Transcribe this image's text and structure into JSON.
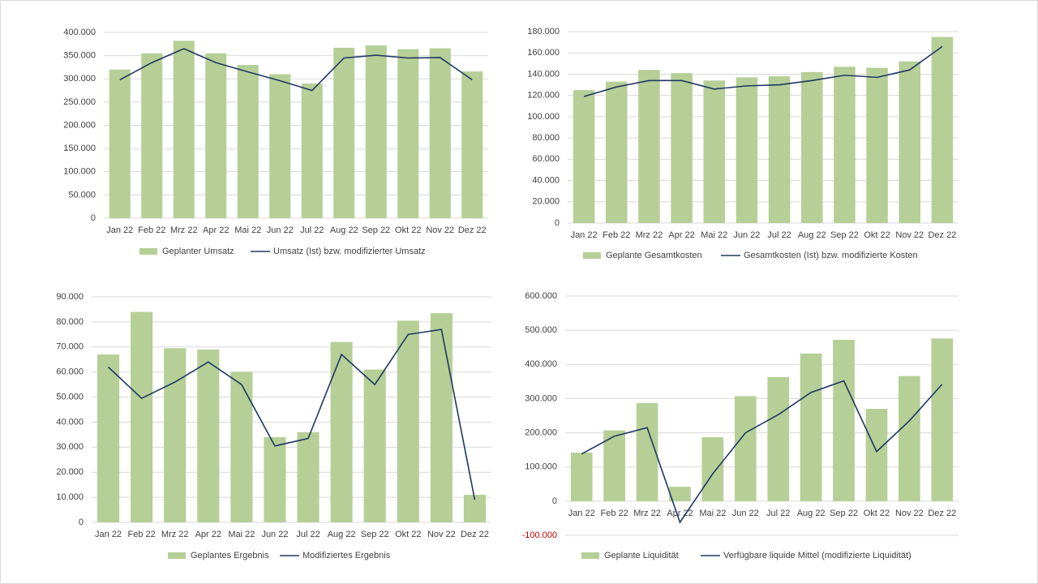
{
  "chart_data": [
    {
      "type": "combo",
      "categories": [
        "Jan 22",
        "Feb 22",
        "Mrz 22",
        "Apr 22",
        "Mai 22",
        "Jun 22",
        "Jul 22",
        "Aug 22",
        "Sep 22",
        "Okt 22",
        "Nov 22",
        "Dez 22"
      ],
      "series": [
        {
          "name": "Geplanter Umsatz",
          "type": "bar",
          "color": "#b5cf96",
          "values": [
            320000,
            355000,
            382000,
            355000,
            330000,
            310000,
            290000,
            367000,
            372000,
            364000,
            366000,
            316000
          ]
        },
        {
          "name": "Umsatz (Ist) bzw. modifizierter Umsatz",
          "type": "line",
          "color": "#1f3864",
          "values": [
            298000,
            335000,
            365000,
            335000,
            315000,
            296000,
            275000,
            345000,
            351000,
            345000,
            346000,
            298000
          ]
        }
      ],
      "ylim": [
        0,
        400000
      ],
      "yticks": [
        0,
        {
          "value": 50000,
          "label": "50.000"
        },
        {
          "value": 100000,
          "label": "100.000"
        },
        {
          "value": 150000,
          "label": "150.000"
        },
        {
          "value": 200000,
          "label": "200.000"
        },
        {
          "value": 250000,
          "label": "250.000"
        },
        {
          "value": 300000,
          "label": "300.000"
        },
        {
          "value": 350000,
          "label": "350.000"
        },
        {
          "value": 400000,
          "label": "400.000"
        }
      ],
      "grid": true
    },
    {
      "type": "combo",
      "categories": [
        "Jan 22",
        "Feb 22",
        "Mrz 22",
        "Apr 22",
        "Mai 22",
        "Jun 22",
        "Jul 22",
        "Aug 22",
        "Sep 22",
        "Okt 22",
        "Nov 22",
        "Dez 22"
      ],
      "series": [
        {
          "name": "Geplante Gesamtkosten",
          "type": "bar",
          "color": "#b5cf96",
          "values": [
            125000,
            133000,
            144000,
            141000,
            134000,
            137000,
            138000,
            142000,
            147000,
            146000,
            152000,
            175000
          ]
        },
        {
          "name": "Gesamtkosten (Ist) bzw. modifizierte Kosten",
          "type": "line",
          "color": "#1f3864",
          "values": [
            119000,
            128000,
            134000,
            134000,
            126000,
            129000,
            130000,
            134000,
            139000,
            137000,
            144000,
            166000
          ]
        }
      ],
      "ylim": [
        0,
        180000
      ],
      "yticks": [
        0,
        {
          "value": 20000,
          "label": "20.000"
        },
        {
          "value": 40000,
          "label": "40.000"
        },
        {
          "value": 60000,
          "label": "60.000"
        },
        {
          "value": 80000,
          "label": "80.000"
        },
        {
          "value": 100000,
          "label": "100.000"
        },
        {
          "value": 120000,
          "label": "120.000"
        },
        {
          "value": 140000,
          "label": "140.000"
        },
        {
          "value": 160000,
          "label": "160.000"
        },
        {
          "value": 180000,
          "label": "180.000"
        }
      ],
      "grid": true
    },
    {
      "type": "combo",
      "categories": [
        "Jan 22",
        "Feb 22",
        "Mrz 22",
        "Apr 22",
        "Mai 22",
        "Jun 22",
        "Jul 22",
        "Aug 22",
        "Sep 22",
        "Okt 22",
        "Nov 22",
        "Dez 22"
      ],
      "series": [
        {
          "name": "Geplantes Ergebnis",
          "type": "bar",
          "color": "#b5cf96",
          "values": [
            67000,
            84000,
            69500,
            69000,
            60000,
            34000,
            36000,
            72000,
            61000,
            80500,
            83500,
            11000
          ]
        },
        {
          "name": "Modifiziertes Ergebnis",
          "type": "line",
          "color": "#1f3864",
          "values": [
            62000,
            49500,
            56000,
            64000,
            55000,
            30500,
            33500,
            67000,
            55000,
            75000,
            77000,
            9000
          ]
        }
      ],
      "ylim": [
        0,
        90000
      ],
      "yticks": [
        0,
        {
          "value": 10000,
          "label": "10.000"
        },
        {
          "value": 20000,
          "label": "20.000"
        },
        {
          "value": 30000,
          "label": "30.000"
        },
        {
          "value": 40000,
          "label": "40.000"
        },
        {
          "value": 50000,
          "label": "50.000"
        },
        {
          "value": 60000,
          "label": "60.000"
        },
        {
          "value": 70000,
          "label": "70.000"
        },
        {
          "value": 80000,
          "label": "80.000"
        },
        {
          "value": 90000,
          "label": "90.000"
        }
      ],
      "grid": true
    },
    {
      "type": "combo",
      "categories": [
        "Jan 22",
        "Feb 22",
        "Mrz 22",
        "Apr 22",
        "Mai 22",
        "Jun 22",
        "Jul 22",
        "Aug 22",
        "Sep 22",
        "Okt 22",
        "Nov 22",
        "Dez 22"
      ],
      "series": [
        {
          "name": "Geplante Liquidität",
          "type": "bar",
          "color": "#b5cf96",
          "values": [
            142000,
            207000,
            287000,
            42000,
            187000,
            307000,
            363000,
            432000,
            472000,
            270000,
            366000,
            476000
          ]
        },
        {
          "name": "Verfügbare liquide Mittel (modifizierte Liquidität)",
          "type": "line",
          "color": "#1f3864",
          "values": [
            138000,
            190000,
            215000,
            -62000,
            80000,
            200000,
            253000,
            318000,
            352000,
            145000,
            235000,
            342000
          ]
        }
      ],
      "ylim": [
        -100000,
        600000
      ],
      "yticks": [
        {
          "value": -100000,
          "label": "-100.000"
        },
        0,
        {
          "value": 100000,
          "label": "100.000"
        },
        {
          "value": 200000,
          "label": "200.000"
        },
        {
          "value": 300000,
          "label": "300.000"
        },
        {
          "value": 400000,
          "label": "400.000"
        },
        {
          "value": 500000,
          "label": "500.000"
        },
        {
          "value": 600000,
          "label": "600.000"
        }
      ],
      "negative_tick_color": "#c00000",
      "grid": true
    }
  ]
}
